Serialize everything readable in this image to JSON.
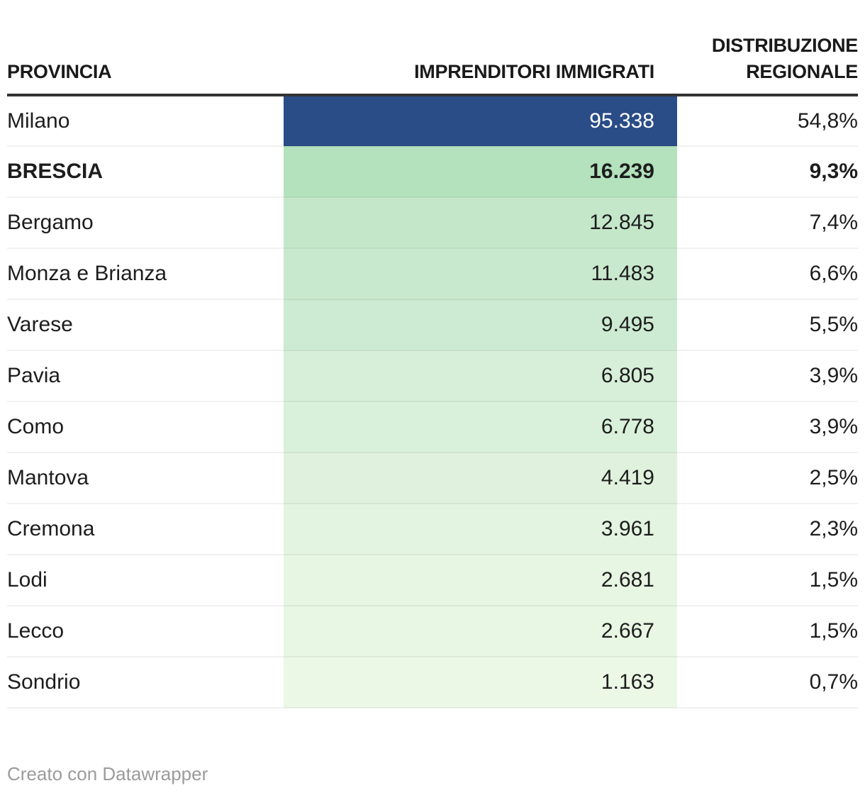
{
  "table": {
    "headers": [
      "PROVINCIA",
      "IMPRENDITORI IMMIGRATI",
      "DISTRIBUZIONE REGIONALE"
    ],
    "rows": [
      {
        "provincia": "Milano",
        "imprenditori": "95.338",
        "distribuzione": "54,8%",
        "cell_color": "#2a4c87",
        "value_text_color": "#ffffff",
        "bold": false
      },
      {
        "provincia": "BRESCIA",
        "imprenditori": "16.239",
        "distribuzione": "9,3%",
        "cell_color": "#b3e2bc",
        "value_text_color": "#1d1d1d",
        "bold": true
      },
      {
        "provincia": "Bergamo",
        "imprenditori": "12.845",
        "distribuzione": "7,4%",
        "cell_color": "#c4e7ca",
        "value_text_color": "#1d1d1d",
        "bold": false
      },
      {
        "provincia": "Monza e Brianza",
        "imprenditori": "11.483",
        "distribuzione": "6,6%",
        "cell_color": "#c9e9ce",
        "value_text_color": "#1d1d1d",
        "bold": false
      },
      {
        "provincia": "Varese",
        "imprenditori": "9.495",
        "distribuzione": "5,5%",
        "cell_color": "#cdebd2",
        "value_text_color": "#1d1d1d",
        "bold": false
      },
      {
        "provincia": "Pavia",
        "imprenditori": "6.805",
        "distribuzione": "3,9%",
        "cell_color": "#d7efd8",
        "value_text_color": "#1d1d1d",
        "bold": false
      },
      {
        "provincia": "Como",
        "imprenditori": "6.778",
        "distribuzione": "3,9%",
        "cell_color": "#d9f0da",
        "value_text_color": "#1d1d1d",
        "bold": false
      },
      {
        "provincia": "Mantova",
        "imprenditori": "4.419",
        "distribuzione": "2,5%",
        "cell_color": "#e0f2dd",
        "value_text_color": "#1d1d1d",
        "bold": false
      },
      {
        "provincia": "Cremona",
        "imprenditori": "3.961",
        "distribuzione": "2,3%",
        "cell_color": "#e3f4e0",
        "value_text_color": "#1d1d1d",
        "bold": false
      },
      {
        "provincia": "Lodi",
        "imprenditori": "2.681",
        "distribuzione": "1,5%",
        "cell_color": "#e7f5e3",
        "value_text_color": "#1d1d1d",
        "bold": false
      },
      {
        "provincia": "Lecco",
        "imprenditori": "2.667",
        "distribuzione": "1,5%",
        "cell_color": "#e8f6e4",
        "value_text_color": "#1d1d1d",
        "bold": false
      },
      {
        "provincia": "Sondrio",
        "imprenditori": "1.163",
        "distribuzione": "0,7%",
        "cell_color": "#ebf8e6",
        "value_text_color": "#1d1d1d",
        "bold": false
      }
    ]
  },
  "footer": {
    "attribution": "Creato con Datawrapper"
  },
  "colors": {
    "highlight_blue": "#2a4c87",
    "heatmap_green_max": "#b3e2bc",
    "heatmap_green_min": "#ebf8e6",
    "header_rule": "#333333",
    "row_border": "rgba(0,0,0,0.055)",
    "text": "#1d1d1d",
    "footer_text": "#9b9b9b"
  },
  "chart_data": {
    "type": "table",
    "columns": [
      "PROVINCIA",
      "IMPRENDITORI IMMIGRATI",
      "DISTRIBUZIONE REGIONALE"
    ],
    "rows": [
      [
        "Milano",
        95338,
        "54,8%"
      ],
      [
        "BRESCIA",
        16239,
        "9,3%"
      ],
      [
        "Bergamo",
        12845,
        "7,4%"
      ],
      [
        "Monza e Brianza",
        11483,
        "6,6%"
      ],
      [
        "Varese",
        9495,
        "5,5%"
      ],
      [
        "Pavia",
        6805,
        "3,9%"
      ],
      [
        "Como",
        6778,
        "3,9%"
      ],
      [
        "Mantova",
        4419,
        "2,5%"
      ],
      [
        "Cremona",
        3961,
        "2,3%"
      ],
      [
        "Lodi",
        2681,
        "1,5%"
      ],
      [
        "Lecco",
        2667,
        "1,5%"
      ],
      [
        "Sondrio",
        1163,
        "0,7%"
      ]
    ],
    "notes": "Heatmap-colored column 2: Milano dark blue with white text; remaining rows green scale fading from #b3e2bc (16.239) to #ebf8e6 (1.163). BRESCIA row is bold-highlighted.",
    "legend_position": "none",
    "grid": "horizontal row dividers"
  }
}
